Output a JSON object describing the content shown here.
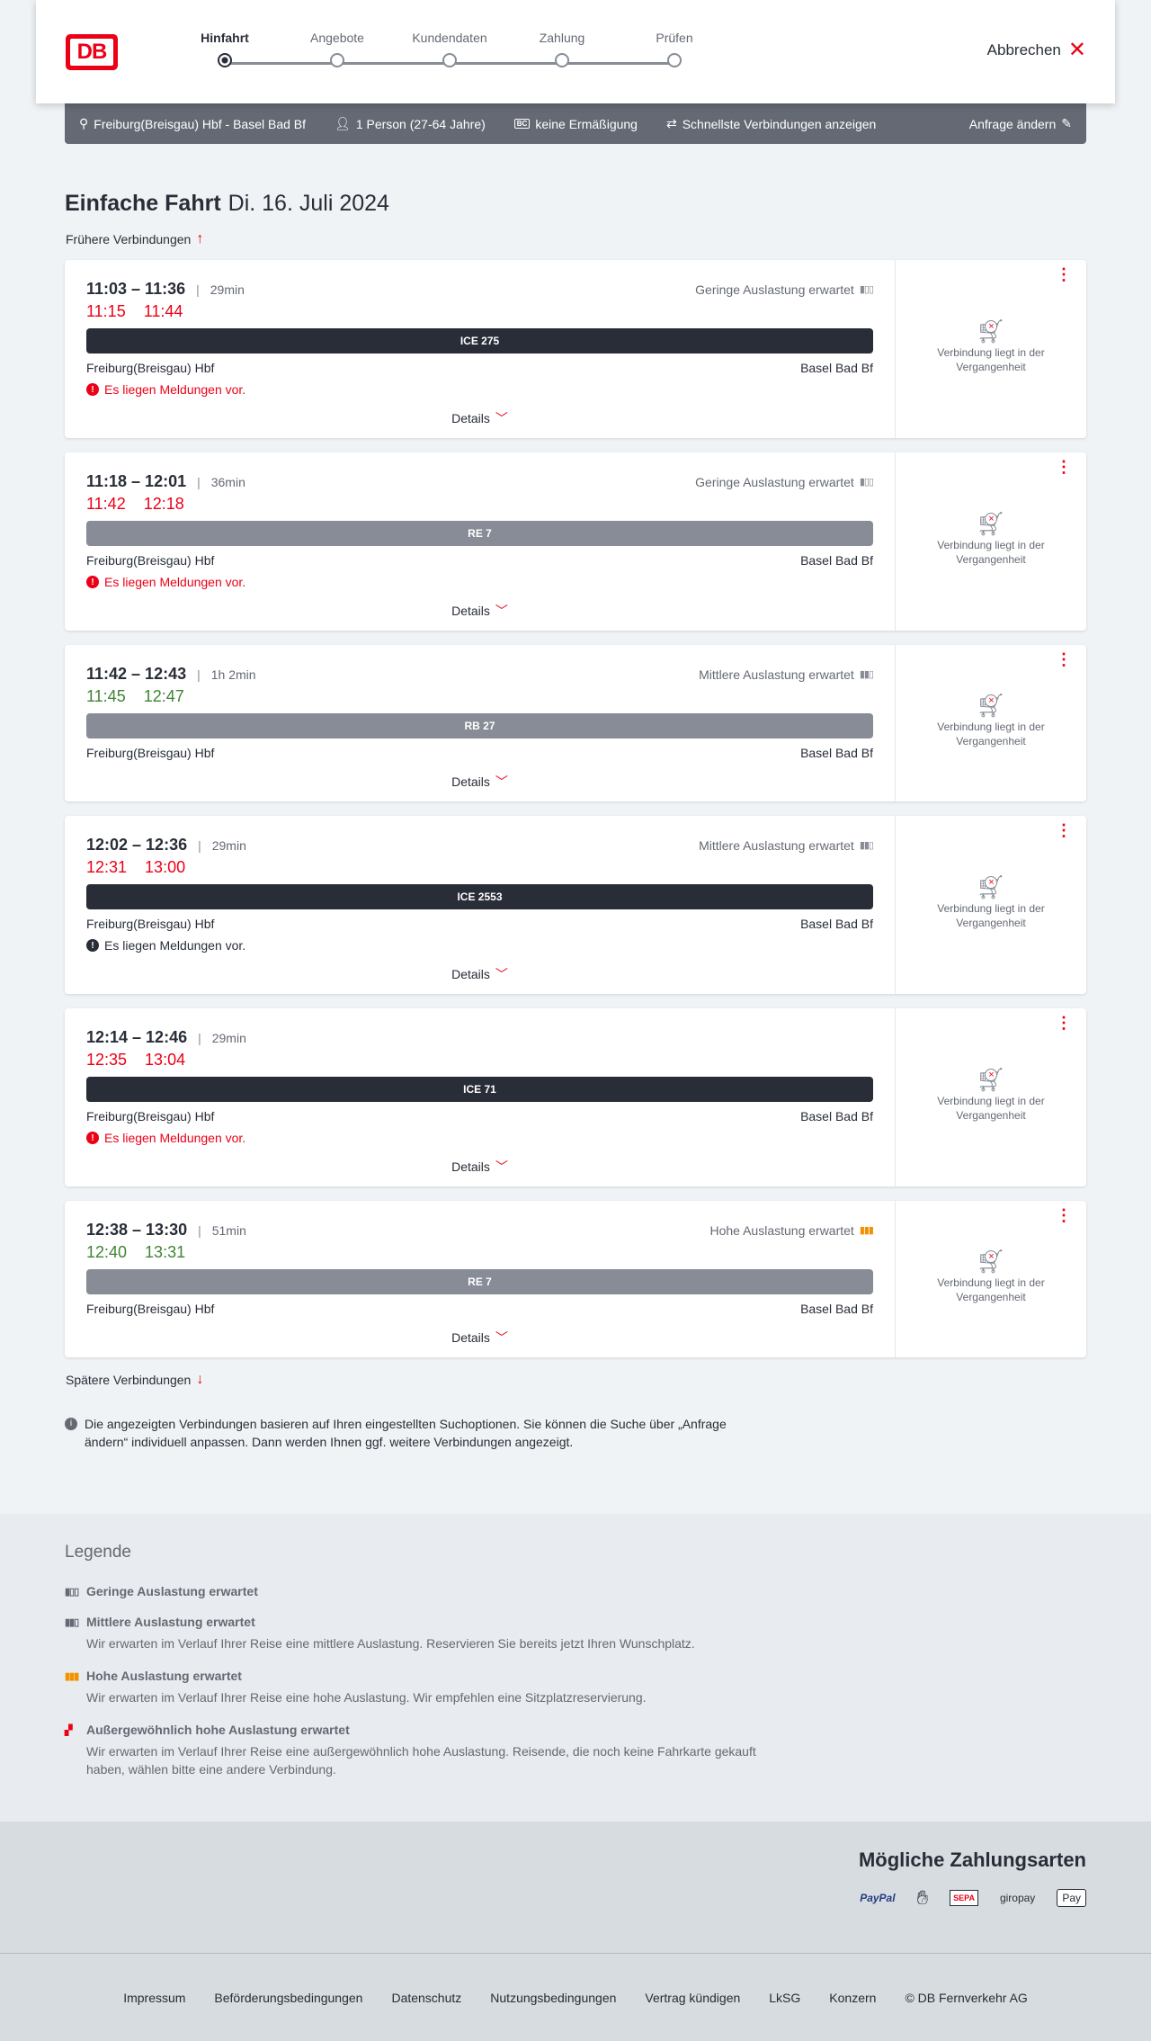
{
  "header": {
    "logo": "DB",
    "steps": [
      "Hinfahrt",
      "Angebote",
      "Kundendaten",
      "Zahlung",
      "Prüfen"
    ],
    "active_step": 0,
    "cancel": "Abbrechen"
  },
  "infobar": {
    "route": "Freiburg(Breisgau) Hbf - Basel Bad Bf",
    "persons": "1 Person (27-64 Jahre)",
    "discount_badge": "BC",
    "discount": "keine Ermäßigung",
    "fastest": "Schnellste Verbindungen anzeigen",
    "edit": "Anfrage ändern"
  },
  "title": {
    "type": "Einfache Fahrt",
    "date": "Di. 16. Juli 2024"
  },
  "earlier": "Frühere Verbindungen",
  "later": "Spätere Verbindungen",
  "unavailable_text": "Verbindung liegt in der Vergangenheit",
  "details_label": "Details",
  "colors": {
    "red": "#ec0016",
    "green": "#408335",
    "dark": "#282d37",
    "orange": "#f39200"
  },
  "connections": [
    {
      "times": "11:03 – 11:36",
      "duration": "29min",
      "load": "Geringe Auslastung erwartet",
      "load_level": 1,
      "actual_dep": "11:15",
      "actual_arr": "11:44",
      "delay": true,
      "train": "ICE 275",
      "train_style": "dark",
      "from": "Freiburg(Breisgau) Hbf",
      "to": "Basel Bad Bf",
      "message": "Es liegen Meldungen vor.",
      "message_color": "red"
    },
    {
      "times": "11:18 – 12:01",
      "duration": "36min",
      "load": "Geringe Auslastung erwartet",
      "load_level": 1,
      "actual_dep": "11:42",
      "actual_arr": "12:18",
      "delay": true,
      "train": "RE 7",
      "train_style": "gray",
      "from": "Freiburg(Breisgau) Hbf",
      "to": "Basel Bad Bf",
      "message": "Es liegen Meldungen vor.",
      "message_color": "red"
    },
    {
      "times": "11:42 – 12:43",
      "duration": "1h 2min",
      "load": "Mittlere Auslastung erwartet",
      "load_level": 2,
      "actual_dep": "11:45",
      "actual_arr": "12:47",
      "delay": false,
      "train": "RB 27",
      "train_style": "gray",
      "from": "Freiburg(Breisgau) Hbf",
      "to": "Basel Bad Bf",
      "message": "",
      "message_color": ""
    },
    {
      "times": "12:02 – 12:36",
      "duration": "29min",
      "load": "Mittlere Auslastung erwartet",
      "load_level": 2,
      "actual_dep": "12:31",
      "actual_arr": "13:00",
      "delay": true,
      "train": "ICE 2553",
      "train_style": "dark",
      "from": "Freiburg(Breisgau) Hbf",
      "to": "Basel Bad Bf",
      "message": "Es liegen Meldungen vor.",
      "message_color": "black"
    },
    {
      "times": "12:14 – 12:46",
      "duration": "29min",
      "load": "",
      "load_level": 0,
      "actual_dep": "12:35",
      "actual_arr": "13:04",
      "delay": true,
      "train": "ICE 71",
      "train_style": "dark",
      "from": "Freiburg(Breisgau) Hbf",
      "to": "Basel Bad Bf",
      "message": "Es liegen Meldungen vor.",
      "message_color": "red"
    },
    {
      "times": "12:38 – 13:30",
      "duration": "51min",
      "load": "Hohe Auslastung erwartet",
      "load_level": 3,
      "actual_dep": "12:40",
      "actual_arr": "13:31",
      "delay": false,
      "train": "RE 7",
      "train_style": "gray",
      "from": "Freiburg(Breisgau) Hbf",
      "to": "Basel Bad Bf",
      "message": "",
      "message_color": ""
    }
  ],
  "note": "Die angezeigten Verbindungen basieren auf Ihren eingestellten Suchoptionen. Sie können die Suche über „Anfrage ändern“ individuell anpassen. Dann werden Ihnen ggf. weitere Verbindungen angezeigt.",
  "legend": {
    "title": "Legende",
    "items": [
      {
        "title": "Geringe Auslastung erwartet",
        "desc": "",
        "level": 1
      },
      {
        "title": "Mittlere Auslastung erwartet",
        "desc": "Wir erwarten im Verlauf Ihrer Reise eine mittlere Auslastung. Reservieren Sie bereits jetzt Ihren Wunschplatz.",
        "level": 2
      },
      {
        "title": "Hohe Auslastung erwartet",
        "desc": "Wir erwarten im Verlauf Ihrer Reise eine hohe Auslastung. Wir empfehlen eine Sitzplatzreservierung.",
        "level": 3
      },
      {
        "title": "Außergewöhnlich hohe Auslastung erwartet",
        "desc": "Wir erwarten im Verlauf Ihrer Reise eine außergewöhnlich hohe Auslastung. Reisende, die noch keine Fahrkarte gekauft haben, wählen bitte eine andere Verbindung.",
        "level": 4
      }
    ]
  },
  "payment": {
    "title": "Mögliche Zahlungsarten",
    "methods": [
      "PayPal",
      "contactless-card-icon",
      "SEPA",
      "giropay",
      "Pay"
    ]
  },
  "footer": {
    "links": [
      "Impressum",
      "Beförderungsbedingungen",
      "Datenschutz",
      "Nutzungsbedingungen",
      "Vertrag kündigen",
      "LkSG",
      "Konzern",
      "© DB Fernverkehr AG"
    ]
  }
}
